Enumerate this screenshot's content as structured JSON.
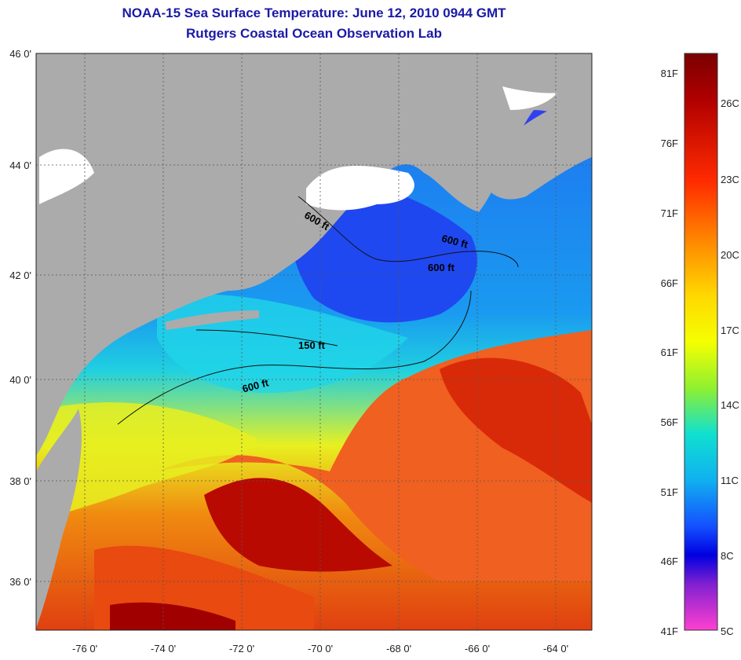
{
  "titles": {
    "line1": "NOAA-15 Sea Surface Temperature:  June 12, 2010 0944 GMT",
    "line2": "Rutgers Coastal Ocean Observation Lab"
  },
  "map": {
    "lat_ticks": [
      "46 0'",
      "44 0'",
      "42 0'",
      "40 0'",
      "38 0'",
      "36 0'"
    ],
    "lon_ticks": [
      "-76 0'",
      "-74 0'",
      "-72 0'",
      "-70 0'",
      "-68 0'",
      "-66 0'",
      "-64 0'"
    ],
    "depth_labels": [
      "600 ft",
      "600 ft",
      "600 ft",
      "150 ft",
      "600 ft"
    ],
    "colors": {
      "land": "#ababab",
      "cloud": "#ffffff",
      "warm": "#e53a10",
      "hot": "#a80000",
      "mid": "#f5e000",
      "cool": "#18c8e8",
      "cold": "#1f3cf0"
    }
  },
  "colorbar": {
    "fahrenheit": [
      "81F",
      "76F",
      "71F",
      "66F",
      "61F",
      "56F",
      "51F",
      "46F",
      "41F"
    ],
    "celsius": [
      "26C",
      "23C",
      "20C",
      "17C",
      "14C",
      "11C",
      "8C",
      "5C"
    ]
  }
}
